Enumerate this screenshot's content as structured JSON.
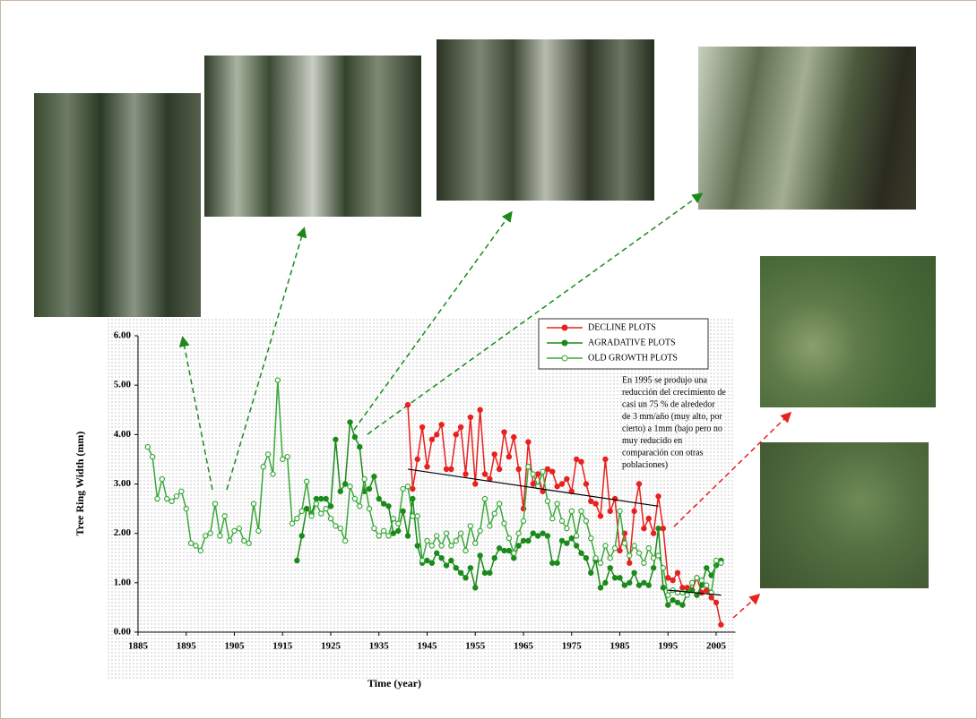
{
  "chart_data": {
    "type": "line",
    "y_label": "Tree Ring Width (mm)",
    "x_label": "Time (year)",
    "xlim": [
      1885,
      2009
    ],
    "ylim": [
      0,
      6
    ],
    "xticks": [
      1885,
      1895,
      1905,
      1915,
      1925,
      1935,
      1945,
      1955,
      1965,
      1975,
      1985,
      1995,
      2005
    ],
    "yticks": [
      {
        "value": 0,
        "label": "0.00"
      },
      {
        "value": 1,
        "label": "1.00"
      },
      {
        "value": 2,
        "label": "2.00"
      },
      {
        "value": 3,
        "label": "3.00"
      },
      {
        "value": 4,
        "label": "4.00"
      },
      {
        "value": 5,
        "label": "5.00"
      },
      {
        "value": 6,
        "label": "6.00"
      }
    ],
    "series": [
      {
        "name": "DECLINE PLOTS",
        "color": "#e8201e",
        "marker": "filled",
        "x": [
          1941,
          1942,
          1943,
          1944,
          1945,
          1946,
          1947,
          1948,
          1949,
          1950,
          1951,
          1952,
          1953,
          1954,
          1955,
          1956,
          1957,
          1958,
          1959,
          1960,
          1961,
          1962,
          1963,
          1964,
          1965,
          1966,
          1967,
          1968,
          1969,
          1970,
          1971,
          1972,
          1973,
          1974,
          1975,
          1976,
          1977,
          1978,
          1979,
          1980,
          1981,
          1982,
          1983,
          1984,
          1985,
          1986,
          1987,
          1988,
          1989,
          1990,
          1991,
          1992,
          1993,
          1994,
          1995,
          1996,
          1997,
          1998,
          1999,
          2000,
          2001,
          2002,
          2003,
          2004,
          2005,
          2006
        ],
        "values": [
          4.6,
          2.9,
          3.5,
          4.15,
          3.35,
          3.9,
          4.0,
          4.2,
          3.3,
          3.3,
          4.0,
          4.15,
          3.2,
          4.35,
          3.0,
          4.5,
          3.2,
          3.1,
          3.6,
          3.3,
          4.05,
          3.55,
          3.95,
          3.3,
          2.5,
          3.85,
          3.0,
          3.2,
          2.85,
          3.3,
          3.25,
          2.95,
          3.0,
          3.1,
          2.85,
          3.5,
          3.45,
          3.0,
          2.65,
          2.6,
          2.35,
          3.5,
          2.45,
          2.7,
          1.65,
          2.0,
          1.4,
          2.45,
          3.0,
          2.1,
          2.3,
          2.0,
          2.75,
          2.1,
          1.1,
          1.05,
          1.2,
          0.9,
          0.9,
          0.85,
          1.1,
          0.8,
          0.85,
          0.7,
          0.6,
          0.15
        ]
      },
      {
        "name": "AGRADATIVE PLOTS",
        "color": "#1a8a1a",
        "marker": "filled",
        "x": [
          1918,
          1919,
          1920,
          1921,
          1922,
          1923,
          1924,
          1925,
          1926,
          1927,
          1928,
          1929,
          1930,
          1931,
          1932,
          1933,
          1934,
          1935,
          1936,
          1937,
          1938,
          1939,
          1940,
          1941,
          1942,
          1943,
          1944,
          1945,
          1946,
          1947,
          1948,
          1949,
          1950,
          1951,
          1952,
          1953,
          1954,
          1955,
          1956,
          1957,
          1958,
          1959,
          1960,
          1961,
          1962,
          1963,
          1964,
          1965,
          1966,
          1967,
          1968,
          1969,
          1970,
          1971,
          1972,
          1973,
          1974,
          1975,
          1976,
          1977,
          1978,
          1979,
          1980,
          1981,
          1982,
          1983,
          1984,
          1985,
          1986,
          1987,
          1988,
          1989,
          1990,
          1991,
          1992,
          1993,
          1994,
          1995,
          1996,
          1997,
          1998,
          1999,
          2000,
          2001,
          2002,
          2003,
          2004,
          2005,
          2006
        ],
        "values": [
          1.45,
          1.95,
          2.5,
          2.4,
          2.7,
          2.7,
          2.7,
          2.55,
          3.9,
          2.85,
          3.0,
          4.25,
          3.95,
          3.75,
          2.85,
          2.9,
          3.15,
          2.7,
          2.6,
          2.55,
          2.0,
          2.05,
          2.45,
          1.95,
          2.7,
          1.75,
          1.4,
          1.45,
          1.4,
          1.6,
          1.5,
          1.35,
          1.45,
          1.3,
          1.2,
          1.1,
          1.3,
          0.9,
          1.55,
          1.2,
          1.2,
          1.5,
          1.7,
          1.65,
          1.65,
          1.5,
          1.75,
          1.85,
          1.85,
          2.0,
          1.95,
          2.0,
          1.95,
          1.4,
          1.4,
          1.85,
          1.8,
          1.9,
          1.75,
          1.6,
          1.5,
          1.2,
          1.45,
          0.9,
          1.0,
          1.3,
          1.1,
          1.1,
          0.95,
          1.0,
          1.2,
          0.95,
          1.0,
          0.95,
          1.3,
          2.1,
          0.9,
          0.55,
          0.65,
          0.6,
          0.55,
          0.8,
          0.85,
          0.75,
          0.95,
          1.3,
          1.15,
          1.35,
          1.45
        ]
      },
      {
        "name": "OLD GROWTH PLOTS",
        "color": "#3aa83a",
        "marker": "open",
        "x": [
          1887,
          1888,
          1889,
          1890,
          1891,
          1892,
          1893,
          1894,
          1895,
          1896,
          1897,
          1898,
          1899,
          1900,
          1901,
          1902,
          1903,
          1904,
          1905,
          1906,
          1907,
          1908,
          1909,
          1910,
          1911,
          1912,
          1913,
          1914,
          1915,
          1916,
          1917,
          1918,
          1919,
          1920,
          1921,
          1922,
          1923,
          1924,
          1925,
          1926,
          1927,
          1928,
          1929,
          1930,
          1931,
          1932,
          1933,
          1934,
          1935,
          1936,
          1937,
          1938,
          1939,
          1940,
          1941,
          1942,
          1943,
          1944,
          1945,
          1946,
          1947,
          1948,
          1949,
          1950,
          1951,
          1952,
          1953,
          1954,
          1955,
          1956,
          1957,
          1958,
          1959,
          1960,
          1961,
          1962,
          1963,
          1964,
          1965,
          1966,
          1967,
          1968,
          1969,
          1970,
          1971,
          1972,
          1973,
          1974,
          1975,
          1976,
          1977,
          1978,
          1979,
          1980,
          1981,
          1982,
          1983,
          1984,
          1985,
          1986,
          1987,
          1988,
          1989,
          1990,
          1991,
          1992,
          1993,
          1994,
          1995,
          1996,
          1997,
          1998,
          1999,
          2000,
          2001,
          2002,
          2003,
          2004,
          2005,
          2006
        ],
        "values": [
          3.75,
          3.55,
          2.7,
          3.1,
          2.7,
          2.65,
          2.75,
          2.85,
          2.5,
          1.8,
          1.75,
          1.65,
          1.95,
          2.0,
          2.6,
          1.95,
          2.35,
          1.85,
          2.05,
          2.1,
          1.85,
          1.8,
          2.6,
          2.05,
          3.35,
          3.6,
          3.2,
          5.1,
          3.5,
          3.55,
          2.2,
          2.3,
          2.45,
          3.05,
          2.35,
          2.6,
          2.4,
          2.5,
          2.3,
          2.15,
          2.1,
          1.85,
          2.95,
          2.7,
          2.55,
          3.1,
          2.5,
          2.1,
          1.95,
          2.05,
          1.95,
          2.3,
          2.2,
          2.9,
          2.95,
          2.35,
          2.35,
          1.45,
          1.85,
          1.75,
          1.95,
          1.75,
          2.0,
          1.75,
          1.85,
          2.0,
          1.65,
          2.15,
          1.8,
          2.05,
          2.7,
          2.15,
          2.4,
          2.6,
          2.2,
          1.9,
          1.6,
          2.0,
          2.25,
          3.35,
          3.2,
          2.95,
          3.25,
          2.65,
          2.3,
          2.6,
          2.25,
          2.1,
          2.45,
          1.95,
          2.45,
          2.25,
          1.9,
          1.5,
          1.4,
          1.75,
          1.5,
          1.7,
          2.45,
          1.8,
          1.55,
          1.75,
          1.6,
          1.4,
          1.7,
          1.5,
          1.55,
          1.3,
          0.75,
          0.85,
          0.8,
          0.8,
          0.75,
          1.0,
          1.1,
          1.05,
          0.95,
          0.8,
          1.45,
          1.4
        ]
      }
    ],
    "trend_lines": [
      {
        "x": [
          1941,
          1993
        ],
        "values": [
          3.3,
          2.55
        ]
      },
      {
        "x": [
          1995,
          2006
        ],
        "values": [
          0.85,
          0.75
        ]
      }
    ],
    "annotation": [
      "En 1995 se produjo una",
      "reducción del crecimiento de",
      "casi un 75 % de alrededor",
      "de 3 mm/año (muy alto, por",
      "cierto) a 1mm (bajo pero no",
      "muy reducido en",
      "comparación con otras",
      "poblaciones)"
    ]
  }
}
